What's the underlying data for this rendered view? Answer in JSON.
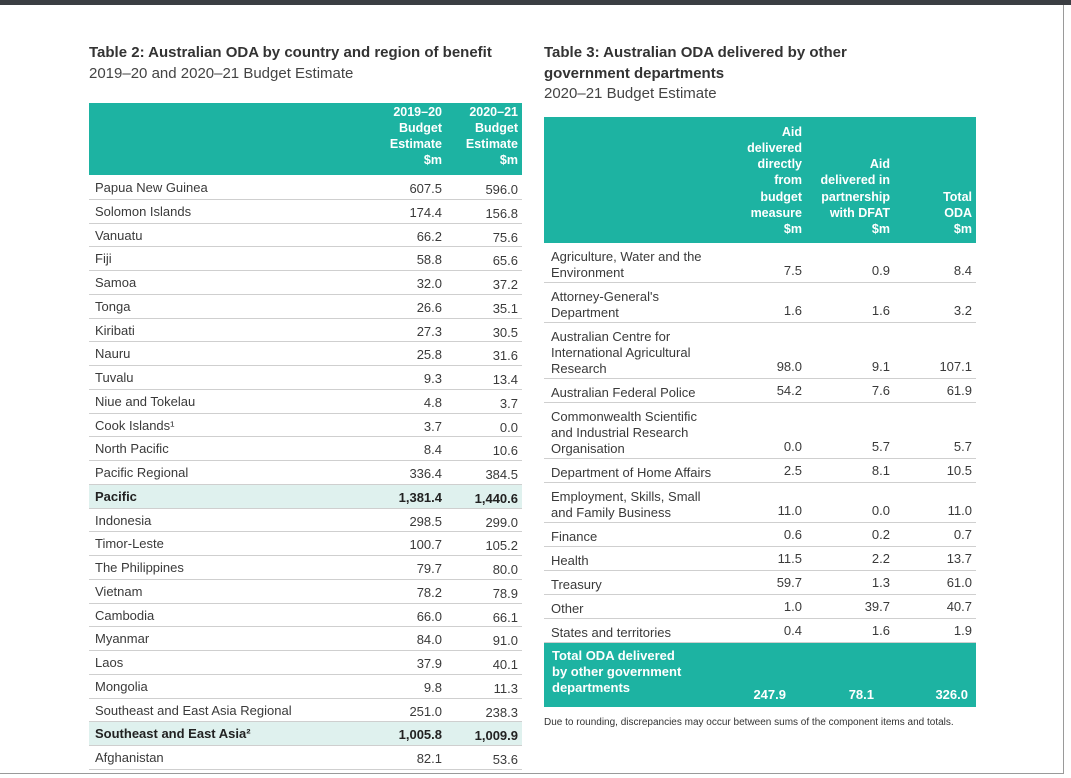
{
  "table_2": {
    "title": "Table 2: Australian ODA by country and region of benefit",
    "subtitle": "2019–20 and 2020–21 Budget Estimate",
    "header": [
      [
        "2019–20",
        "Budget",
        "Estimate",
        "$m"
      ],
      [
        "2020–21",
        "Budget",
        "Estimate",
        "$m"
      ]
    ],
    "rows": [
      {
        "label": "Papua New Guinea",
        "values": [
          "607.5",
          "596.0"
        ]
      },
      {
        "label": "Solomon Islands",
        "values": [
          "174.4",
          "156.8"
        ]
      },
      {
        "label": "Vanuatu",
        "values": [
          "66.2",
          "75.6"
        ]
      },
      {
        "label": "Fiji",
        "values": [
          "58.8",
          "65.6"
        ]
      },
      {
        "label": "Samoa",
        "values": [
          "32.0",
          "37.2"
        ]
      },
      {
        "label": "Tonga",
        "values": [
          "26.6",
          "35.1"
        ]
      },
      {
        "label": "Kiribati",
        "values": [
          "27.3",
          "30.5"
        ]
      },
      {
        "label": "Nauru",
        "values": [
          "25.8",
          "31.6"
        ]
      },
      {
        "label": "Tuvalu",
        "values": [
          "9.3",
          "13.4"
        ]
      },
      {
        "label": "Niue and Tokelau",
        "values": [
          "4.8",
          "3.7"
        ]
      },
      {
        "label": "Cook Islands¹",
        "values": [
          "3.7",
          "0.0"
        ]
      },
      {
        "label": "North Pacific",
        "values": [
          "8.4",
          "10.6"
        ]
      },
      {
        "label": "Pacific Regional",
        "values": [
          "336.4",
          "384.5"
        ]
      },
      {
        "label": "Pacific",
        "values": [
          "1,381.4",
          "1,440.6"
        ],
        "subtotal": true
      },
      {
        "label": "Indonesia",
        "values": [
          "298.5",
          "299.0"
        ]
      },
      {
        "label": "Timor-Leste",
        "values": [
          "100.7",
          "105.2"
        ]
      },
      {
        "label": "The Philippines",
        "values": [
          "79.7",
          "80.0"
        ]
      },
      {
        "label": "Vietnam",
        "values": [
          "78.2",
          "78.9"
        ]
      },
      {
        "label": "Cambodia",
        "values": [
          "66.0",
          "66.1"
        ]
      },
      {
        "label": "Myanmar",
        "values": [
          "84.0",
          "91.0"
        ]
      },
      {
        "label": "Laos",
        "values": [
          "37.9",
          "40.1"
        ]
      },
      {
        "label": "Mongolia",
        "values": [
          "9.8",
          "11.3"
        ]
      },
      {
        "label": "Southeast and East Asia Regional",
        "values": [
          "251.0",
          "238.3"
        ]
      },
      {
        "label": "Southeast and East Asia²",
        "values": [
          "1,005.8",
          "1,009.9"
        ],
        "subtotal": true
      },
      {
        "label": "Afghanistan",
        "values": [
          "82.1",
          "53.6"
        ]
      }
    ]
  },
  "table_3": {
    "title": [
      "Table 3: Australian ODA delivered by other",
      "government departments"
    ],
    "subtitle": "2020–21 Budget Estimate",
    "header": [
      [
        "Aid",
        "delivered",
        "directly",
        "from",
        "budget",
        "measure",
        "$m"
      ],
      [
        "Aid",
        "delivered in",
        "partnership",
        "with DFAT",
        "$m"
      ],
      [
        "Total",
        "ODA",
        "$m"
      ]
    ],
    "rows": [
      {
        "label": [
          "Agriculture, Water and the",
          "Environment"
        ],
        "values": [
          "7.5",
          "0.9",
          "8.4"
        ]
      },
      {
        "label": [
          "Attorney-General's",
          "Department"
        ],
        "values": [
          "1.6",
          "1.6",
          "3.2"
        ]
      },
      {
        "label": [
          "Australian Centre for",
          "International Agricultural",
          "Research"
        ],
        "values": [
          "98.0",
          "9.1",
          "107.1"
        ]
      },
      {
        "label": [
          "Australian Federal Police"
        ],
        "values": [
          "54.2",
          "7.6",
          "61.9"
        ]
      },
      {
        "label": [
          "Commonwealth Scientific",
          "and Industrial Research",
          "Organisation"
        ],
        "values": [
          "0.0",
          "5.7",
          "5.7"
        ]
      },
      {
        "label": [
          "Department of Home Affairs"
        ],
        "values": [
          "2.5",
          "8.1",
          "10.5"
        ]
      },
      {
        "label": [
          "Employment, Skills, Small",
          "and Family Business"
        ],
        "values": [
          "11.0",
          "0.0",
          "11.0"
        ]
      },
      {
        "label": [
          "Finance"
        ],
        "values": [
          "0.6",
          "0.2",
          "0.7"
        ]
      },
      {
        "label": [
          "Health"
        ],
        "values": [
          "11.5",
          "2.2",
          "13.7"
        ]
      },
      {
        "label": [
          "Treasury"
        ],
        "values": [
          "59.7",
          "1.3",
          "61.0"
        ]
      },
      {
        "label": [
          "Other"
        ],
        "values": [
          "1.0",
          "39.7",
          "40.7"
        ]
      },
      {
        "label": [
          "States and territories"
        ],
        "values": [
          "0.4",
          "1.6",
          "1.9"
        ]
      }
    ],
    "total": {
      "label": [
        "Total ODA delivered",
        "by other government",
        "departments"
      ],
      "values": [
        "247.9",
        "78.1",
        "326.0"
      ]
    },
    "note": "Due to rounding, discrepancies may occur between sums of the component items and totals."
  }
}
